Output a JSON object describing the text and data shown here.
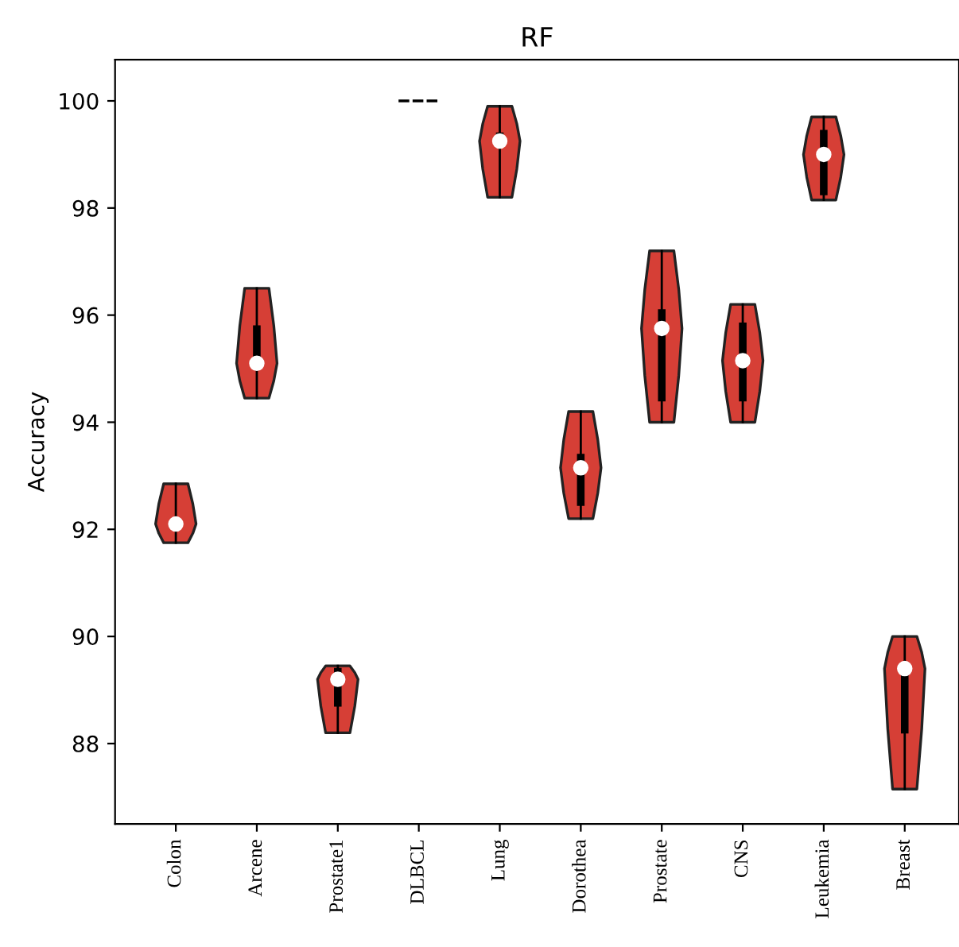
{
  "chart_data": {
    "type": "box",
    "title": "RF",
    "ylabel": "Accuracy",
    "categories": [
      "Colon",
      "Arcene",
      "Prostate1",
      "DLBCL",
      "Lung",
      "Dorothea",
      "Prostate",
      "CNS",
      "Leukemia",
      "Breast"
    ],
    "color": "#000000",
    "ylim": [
      86.5,
      100.77
    ],
    "yticks": [
      88,
      90,
      92,
      94,
      96,
      98,
      100
    ],
    "grid": false,
    "boxes": [
      {
        "low": 91.75,
        "q1": 92.05,
        "median": 92.1,
        "q3": 92.15,
        "high": 92.85
      },
      {
        "low": 94.45,
        "q1": 95.2,
        "median": 95.1,
        "q3": 95.8,
        "high": 96.5
      },
      {
        "low": 88.2,
        "q1": 88.7,
        "median": 89.2,
        "q3": 89.4,
        "high": 89.45
      },
      {
        "low": 100,
        "q1": 100,
        "median": 100,
        "q3": 100,
        "high": 100
      },
      {
        "low": 98.2,
        "q1": 99.3,
        "median": 99.25,
        "q3": 99.4,
        "high": 99.9
      },
      {
        "low": 92.2,
        "q1": 92.45,
        "median": 93.15,
        "q3": 93.4,
        "high": 94.2
      },
      {
        "low": 94.0,
        "q1": 94.4,
        "median": 95.75,
        "q3": 96.1,
        "high": 97.2
      },
      {
        "low": 94.0,
        "q1": 94.4,
        "median": 95.15,
        "q3": 95.85,
        "high": 96.2
      },
      {
        "low": 98.15,
        "q1": 98.25,
        "median": 99.0,
        "q3": 99.45,
        "high": 99.7
      },
      {
        "low": 87.15,
        "q1": 88.2,
        "median": 89.4,
        "q3": 89.45,
        "high": 90.0
      }
    ]
  }
}
